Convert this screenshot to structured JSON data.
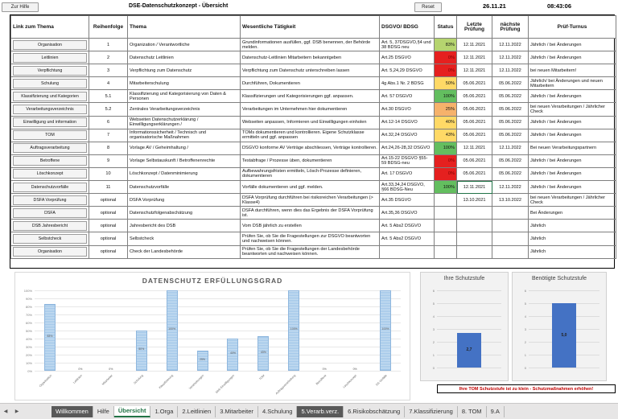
{
  "header": {
    "help_button": "Zur Hilfe",
    "title": "DSE-Datenschutzkonzept - Übersicht",
    "reset_button": "Reset",
    "date": "26.11.21",
    "time": "08:43:06"
  },
  "table": {
    "headers": [
      "Link zum Thema",
      "Reihenfolge",
      "Thema",
      "Wesentliche Tätigkeit",
      "DSGVO/ BDSG",
      "Status",
      "Letzte Prüfung",
      "nächste Prüfung",
      "Prüf-Turnus"
    ],
    "rows": [
      {
        "link": "Organisation",
        "order": "1",
        "topic": "Organization / Verantwortliche",
        "activity": "Grundinformationen ausfüllen, ggf. DSB benennen, der Behörde melden.",
        "law": "Art. 5, 37DSGVO,§4 und 38 BDSG neu",
        "status": "83%",
        "status_color": "yellowgreen",
        "last": "12.11.2021",
        "next": "12.11.2022",
        "cycle": "Jährlich / bei Änderungen"
      },
      {
        "link": "Leitlinien",
        "order": "2",
        "topic": "Datenschutz Leitlinien",
        "activity": "Datenschutz-Leitlinien Mitarbeitern bekanntgeben",
        "law": "Art.25 DSGVO",
        "status": "0%",
        "status_color": "red",
        "last": "12.11.2021",
        "next": "12.11.2022",
        "cycle": "Jährlich / bei Änderungen"
      },
      {
        "link": "Verpflichtung",
        "order": "3",
        "topic": "Verpflichtung zum Datenschutz",
        "activity": "Verpflichtung zum Datenschutz unterschreiben lassen",
        "law": "Art. 5,24,29 DSGVO",
        "status": "0%",
        "status_color": "red",
        "last": "12.11.2021",
        "next": "12.11.2022",
        "cycle": "bei neuen Mitarbeitern!"
      },
      {
        "link": "Schulung",
        "order": "4",
        "topic": "Mitarbeiterschulung",
        "activity": "Durchführen, Dokumentieren",
        "law": "4g Abs.1 Nr. 2 BDSG",
        "status": "50%",
        "status_color": "yellow",
        "last": "05.06.2021",
        "next": "05.06.2022",
        "cycle": "Jährlich/ bei Änderungen und neuen Mitarbeitern"
      },
      {
        "link": "Klassifizierung und Kategorien",
        "order": "5.1",
        "topic": "Klassifizierung und Kategorisierung von Daten & Personen",
        "activity": "Klassifizierungen und Kategorisierungen ggf. anpassen.",
        "law": "Art. 57 DSGVO",
        "status": "100%",
        "status_color": "green",
        "last": "05.06.2021",
        "next": "05.06.2022",
        "cycle": "Jährlich / bei Änderungen"
      },
      {
        "link": "Verarbeitungsverzeichnis",
        "order": "5.2",
        "topic": "Zentrales Verarbeitungsverzeichnis",
        "activity": "Verarbeitungen im Unternehmen hier dokumentieren",
        "law": "Art.30 DSGVO",
        "status": "25%",
        "status_color": "orange",
        "last": "05.06.2021",
        "next": "05.06.2022",
        "cycle": "bei neuen Verarbeitungen / Jährlicher Check"
      },
      {
        "link": "Einwilligung und information",
        "order": "6",
        "topic": "Webseiten Datenschutzerklärung / Einwilligungserklärungen /",
        "activity": "Webseiten anpassen, Informieren und Einwilligungen einholen",
        "law": "Art.12-14 DSGVO",
        "status": "40%",
        "status_color": "yellow",
        "last": "05.06.2021",
        "next": "05.06.2022",
        "cycle": "Jährlich / bei Änderungen"
      },
      {
        "link": "TOM",
        "order": "7",
        "topic": "Informationssicherheit / Technisch und organisatorische Maßnahmen",
        "activity": "TOMs dokumentieren und kontrollieren. Eigene Schutzklasse ermitteln und ggf. anpassen",
        "law": "Art.32,24 DSGVO",
        "status": "43%",
        "status_color": "yellow",
        "last": "05.06.2021",
        "next": "05.06.2022",
        "cycle": "Jährlich / bei Änderungen"
      },
      {
        "link": "Auftragsverarbeitung",
        "order": "8",
        "topic": "Vorlage AV / Geheimhaltung /",
        "activity": "DSGVO konforme AV Verträge abschliessen, Verträge kontrollieren.",
        "law": "Art.24,26-28,32 DSGVO",
        "status": "100%",
        "status_color": "green",
        "last": "12.11.2021",
        "next": "12.11.2022",
        "cycle": "Bei neuen Verarbeitungspartnern"
      },
      {
        "link": "Betroffene",
        "order": "9",
        "topic": "Vorlage Selbstauskunft / Betroffenenrechte",
        "activity": "Testabfrage / Prozesse üben, dokumentieren",
        "law": "Art.15-22 DSGVO §55-59 BDSG-neu",
        "status": "0%",
        "status_color": "red",
        "last": "05.06.2021",
        "next": "05.06.2022",
        "cycle": "Jährlich / bei Änderungen"
      },
      {
        "link": "Löschkonzept",
        "order": "10",
        "topic": "Löschkonzept / Datenminimierung",
        "activity": "Aufbewahrungsfristen ermitteln, Lösch-Prozesse definieren, dokumentieren",
        "law": "Art. 17 DSGVO",
        "status": "0%",
        "status_color": "red",
        "last": "05.06.2021",
        "next": "05.06.2022",
        "cycle": "Jährlich / bei Änderungen"
      },
      {
        "link": "Datenschutzvorfälle",
        "order": "11",
        "topic": "Datenschutzvorfälle",
        "activity": "Vorfälle dokumentieren und ggf. melden.",
        "law": "Art.33,34,24 DSGVO, §66 BDSG-Neu",
        "status": "100%",
        "status_color": "green",
        "last": "12.11.2021",
        "next": "12.11.2022",
        "cycle": "Jährlich / bei Änderungen"
      },
      {
        "link": "DSFA Vorprüfung",
        "order": "optional",
        "topic": "DSFA Vorprüfung",
        "activity": "DSFA Vorprüfung durchführen bei risikoreichen Verarbeitungen (> Klasse4)",
        "law": "Art.35 DSGVO",
        "status": "",
        "status_color": "none",
        "last": "13.10.2021",
        "next": "13.10.2022",
        "cycle": "bei neuen Verarbeitungen / Jährlicher Check"
      },
      {
        "link": "DSFA",
        "order": "optional",
        "topic": "Datenschutzfolgenabschätzung",
        "activity": "DSFA durchführen, wenn dies das Ergebnis der DSFA Vorprüfung ist.",
        "law": "Art.35,36 DSGVO",
        "status": "",
        "status_color": "none",
        "last": "",
        "next": "",
        "cycle": "Bei Änderungen"
      },
      {
        "link": "DSB Jahresbericht",
        "order": "optional",
        "topic": "Jahresbericht des DSB",
        "activity": "Vom DSB jährlich zu erstellen",
        "law": "Art. 5 Abs2 DSGVO",
        "status": "",
        "status_color": "none",
        "last": "",
        "next": "",
        "cycle": "Jährlich"
      },
      {
        "link": "Selbstcheck",
        "order": "optional",
        "topic": "Selbstcheck",
        "activity": "Prüfen Sie, ob Sie die Fragestellungen zur DSGVO beantworten und nachweisen können.",
        "law": "Art. 5 Abs2 DSGVO",
        "status": "",
        "status_color": "none",
        "last": "",
        "next": "",
        "cycle": "Jährlich"
      },
      {
        "link": "Organisation",
        "order": "optional",
        "topic": "Check der Landesbehörde",
        "activity": "Prüfen Sie, ob Sie die Fragestellungen der Landesbehörde beantworten und nachweisen können.",
        "law": "",
        "status": "",
        "status_color": "none",
        "last": "",
        "next": "",
        "cycle": "Jährlich"
      }
    ]
  },
  "chart_data": [
    {
      "type": "bar",
      "title": "DATENSCHUTZ ERFÜLLUNGSGRAD",
      "categories": [
        "Organisation",
        "Leitlinien",
        "Mitarbeiter",
        "Schulung",
        "Klassifizierung",
        "Verarbeitungen",
        "Web Einwilligungen",
        "TOM",
        "Auftragsverarbeitung",
        "Betroffene",
        "Löschkonzept",
        "DS Vorfälle"
      ],
      "values": [
        83,
        0,
        0,
        50,
        100,
        25,
        40,
        43,
        100,
        0,
        0,
        100
      ],
      "value_labels": [
        "83%",
        "0%",
        "0%",
        "50%",
        "100%",
        "25%",
        "40%",
        "43%",
        "100%",
        "0%",
        "0%",
        "100%"
      ],
      "yticks": [
        "100%",
        "90%",
        "80%",
        "70%",
        "60%",
        "50%",
        "40%",
        "30%",
        "20%",
        "10%",
        "0%"
      ],
      "ylim": [
        0,
        100
      ]
    },
    {
      "type": "bar",
      "title": "Ihre Schutzstufe",
      "values": [
        2.7
      ],
      "value_labels": [
        "2,7"
      ],
      "yticks": [
        "6",
        "5",
        "4",
        "3",
        "2",
        "1",
        "0"
      ],
      "ylim": [
        0,
        6
      ]
    },
    {
      "type": "bar",
      "title": "Benötigte Schutzstufe",
      "values": [
        5.0
      ],
      "value_labels": [
        "5,0"
      ],
      "yticks": [
        "6",
        "5",
        "4",
        "3",
        "2",
        "1",
        "0"
      ],
      "ylim": [
        0,
        6
      ]
    }
  ],
  "warning": "Ihre TOM Schutzstufe ist zu klein - Schutzmaßnahmen erhöhen!",
  "tabs": [
    "Willkommen",
    "Hilfe",
    "Übersicht",
    "1.Orga",
    "2.Leitlinien",
    "3.Mitarbeiter",
    "4.Schulung",
    "5.Verarb.verz.",
    "6.Risikobschätzung",
    "7.Klassifizierung",
    "8. TOM",
    "9.A"
  ],
  "colors": {
    "bar_main": "#9fc5e8",
    "bar_small": "#4472c4",
    "active_tab": "#217346",
    "warning": "#c00000"
  }
}
